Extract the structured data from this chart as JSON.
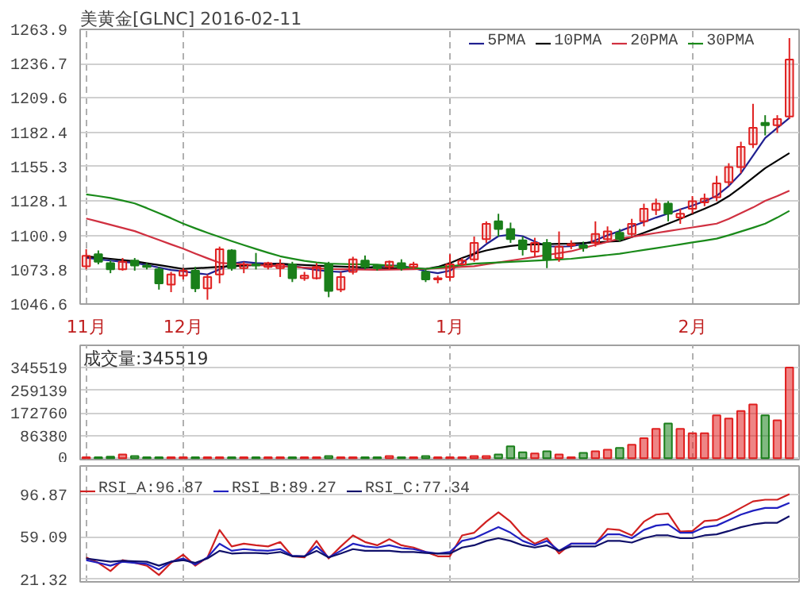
{
  "chart_data": [
    {
      "type": "candlestick",
      "title": "美黄金[GLNC] 2016-02-11",
      "legend": "top right",
      "grid": true,
      "categories": [
        "11月",
        null,
        null,
        null,
        null,
        null,
        null,
        null,
        "12月",
        null,
        null,
        null,
        null,
        null,
        null,
        null,
        null,
        null,
        null,
        null,
        null,
        null,
        null,
        null,
        null,
        null,
        null,
        null,
        null,
        null,
        "1月",
        null,
        null,
        null,
        null,
        null,
        null,
        null,
        null,
        null,
        null,
        null,
        null,
        null,
        null,
        null,
        null,
        null,
        null,
        null,
        "2月",
        null,
        null,
        null,
        null,
        null,
        null,
        null,
        null
      ],
      "ohlc": [
        [
          1076.5,
          1090,
          1074,
          1084.8
        ],
        [
          1086,
          1089,
          1078,
          1080
        ],
        [
          1079,
          1081,
          1071,
          1074
        ],
        [
          1074,
          1083,
          1073,
          1080
        ],
        [
          1081,
          1083,
          1073,
          1077
        ],
        [
          1077,
          1079,
          1074,
          1076
        ],
        [
          1074,
          1076,
          1058,
          1063
        ],
        [
          1062,
          1072,
          1056,
          1070
        ],
        [
          1069,
          1075,
          1066,
          1073
        ],
        [
          1073,
          1076,
          1056,
          1059
        ],
        [
          1059,
          1070,
          1050,
          1068
        ],
        [
          1070,
          1092,
          1063,
          1090
        ],
        [
          1089,
          1090,
          1073,
          1075
        ],
        [
          1075,
          1080,
          1071,
          1078
        ],
        [
          1078,
          1087,
          1074,
          1077
        ],
        [
          1076,
          1080,
          1074,
          1079
        ],
        [
          1075,
          1082,
          1068,
          1078
        ],
        [
          1078,
          1080,
          1064,
          1067
        ],
        [
          1067,
          1072,
          1065,
          1069
        ],
        [
          1067,
          1079,
          1066,
          1076
        ],
        [
          1078,
          1080,
          1052,
          1057
        ],
        [
          1058,
          1072,
          1056,
          1068
        ],
        [
          1072,
          1084,
          1070,
          1082
        ],
        [
          1081,
          1085,
          1074,
          1076
        ],
        [
          1077,
          1078,
          1073,
          1075
        ],
        [
          1076,
          1081,
          1074,
          1080
        ],
        [
          1079,
          1082,
          1073,
          1075
        ],
        [
          1076,
          1080,
          1074,
          1078
        ],
        [
          1072,
          1074,
          1064,
          1066
        ],
        [
          1066,
          1069,
          1063,
          1067
        ],
        [
          1068,
          1086,
          1065,
          1078
        ],
        [
          1078,
          1083,
          1077,
          1081
        ],
        [
          1082,
          1100,
          1080,
          1095
        ],
        [
          1098,
          1112,
          1095,
          1110
        ],
        [
          1112,
          1118,
          1100,
          1106
        ],
        [
          1106,
          1111,
          1095,
          1098
        ],
        [
          1097,
          1100,
          1085,
          1090
        ],
        [
          1088,
          1099,
          1084,
          1095
        ],
        [
          1095,
          1098,
          1075,
          1082
        ],
        [
          1083,
          1104,
          1080,
          1092
        ],
        [
          1093,
          1097,
          1090,
          1094
        ],
        [
          1093,
          1096,
          1088,
          1091
        ],
        [
          1095,
          1112,
          1092,
          1102
        ],
        [
          1098,
          1108,
          1096,
          1104
        ],
        [
          1103,
          1106,
          1096,
          1098
        ],
        [
          1102,
          1114,
          1100,
          1110
        ],
        [
          1112,
          1126,
          1108,
          1122
        ],
        [
          1121,
          1130,
          1117,
          1126
        ],
        [
          1126,
          1128,
          1112,
          1118
        ],
        [
          1115,
          1122,
          1110,
          1118
        ],
        [
          1122,
          1132,
          1118,
          1128
        ],
        [
          1127,
          1134,
          1124,
          1130
        ],
        [
          1131,
          1148,
          1128,
          1142
        ],
        [
          1143,
          1158,
          1140,
          1155
        ],
        [
          1155,
          1175,
          1150,
          1171
        ],
        [
          1173,
          1205,
          1170,
          1186
        ],
        [
          1190,
          1196,
          1180,
          1188
        ],
        [
          1188,
          1196,
          1182,
          1193
        ],
        [
          1195,
          1257,
          1193,
          1240
        ]
      ],
      "colors": [
        "#e02020",
        "#1a7f1a",
        "#1a7f1a",
        "#e02020",
        "#1a7f1a",
        "#1a7f1a",
        "#1a7f1a",
        "#e02020",
        "#e02020",
        "#1a7f1a",
        "#e02020",
        "#e02020",
        "#1a7f1a",
        "#e02020",
        "#1a7f1a",
        "#e02020",
        "#e02020",
        "#1a7f1a",
        "#e02020",
        "#e02020",
        "#1a7f1a",
        "#e02020",
        "#e02020",
        "#1a7f1a",
        "#1a7f1a",
        "#e02020",
        "#1a7f1a",
        "#e02020",
        "#1a7f1a",
        "#e02020",
        "#e02020",
        "#e02020",
        "#e02020",
        "#e02020",
        "#1a7f1a",
        "#1a7f1a",
        "#1a7f1a",
        "#e02020",
        "#1a7f1a",
        "#e02020",
        "#e02020",
        "#1a7f1a",
        "#e02020",
        "#e02020",
        "#1a7f1a",
        "#e02020",
        "#e02020",
        "#e02020",
        "#1a7f1a",
        "#e02020",
        "#e02020",
        "#e02020",
        "#e02020",
        "#e02020",
        "#e02020",
        "#e02020",
        "#1a7f1a",
        "#e02020",
        "#e02020"
      ],
      "series": [
        {
          "name": "5PMA",
          "type": "line",
          "color": "#202090",
          "values": [
            1083.2,
            1082,
            1081,
            1080,
            1079.2,
            1077.5,
            1075.5,
            1073.5,
            1072.5,
            1071,
            1070,
            1074,
            1078.5,
            1080,
            1079,
            1078.5,
            1078.5,
            1077,
            1075,
            1073.5,
            1072.5,
            1072,
            1073.5,
            1075,
            1076.5,
            1077,
            1077,
            1075,
            1072.5,
            1071,
            1073,
            1079,
            1086.4,
            1094,
            1100.3,
            1101.5,
            1100.3,
            1096,
            1092.3,
            1092,
            1092.3,
            1094,
            1097,
            1101,
            1104.3,
            1108,
            1111.5,
            1115,
            1118.2,
            1121.5,
            1124.5,
            1128,
            1132.2,
            1140,
            1150.1,
            1164,
            1177.9,
            1186,
            1193.8
          ]
        },
        {
          "name": "10PMA",
          "type": "line",
          "color": "#000000",
          "values": [
            1084.4,
            1083.4,
            1082.4,
            1081.4,
            1080.4,
            1078.9,
            1077.4,
            1075.9,
            1074.4,
            1074.9,
            1075.4,
            1076,
            1076.5,
            1077,
            1077.5,
            1078,
            1078.5,
            1078,
            1077.5,
            1077,
            1076.5,
            1076.2,
            1075.9,
            1075.6,
            1075.3,
            1075,
            1074.8,
            1074.6,
            1074.4,
            1076,
            1079,
            1083,
            1086.4,
            1089,
            1091,
            1092.5,
            1093.5,
            1093.8,
            1094,
            1094.2,
            1094.4,
            1094.9,
            1095.4,
            1095.9,
            1096.4,
            1099.5,
            1103,
            1106.5,
            1110.2,
            1114,
            1118,
            1122,
            1126.2,
            1132,
            1139,
            1146.5,
            1154.1,
            1160,
            1166
          ]
        },
        {
          "name": "20PMA",
          "type": "line",
          "color": "#d03040",
          "values": [
            1114.3,
            1111.8,
            1109.3,
            1106.8,
            1104.3,
            1100.8,
            1097.3,
            1093.8,
            1090.4,
            1086.5,
            1082.8,
            1079.2,
            1078.5,
            1078,
            1077.5,
            1077,
            1076.5,
            1076,
            1075.4,
            1074.9,
            1074.4,
            1074.2,
            1074,
            1073.8,
            1073.7,
            1073.9,
            1074,
            1074.2,
            1074.4,
            1074.9,
            1075.4,
            1076,
            1076.5,
            1078,
            1079.5,
            1081,
            1082.4,
            1083.9,
            1085.4,
            1086.9,
            1088.4,
            1090.9,
            1093.4,
            1095.8,
            1098.3,
            1099.8,
            1101.3,
            1102.8,
            1104.3,
            1105.8,
            1107.2,
            1108.7,
            1110.2,
            1114,
            1118.5,
            1123,
            1128.2,
            1132,
            1136.2
          ]
        },
        {
          "name": "30PMA",
          "type": "line",
          "color": "#1a8a1a",
          "values": [
            1133.4,
            1132,
            1130.5,
            1128.5,
            1126.2,
            1122.5,
            1118.5,
            1114.5,
            1110.2,
            1106.5,
            1103,
            1099.7,
            1096.4,
            1093.2,
            1090.2,
            1087.2,
            1084.4,
            1082.5,
            1080.8,
            1079.5,
            1078.5,
            1078.3,
            1078.1,
            1078,
            1077.8,
            1077,
            1076,
            1075.2,
            1074.4,
            1075.4,
            1076.5,
            1077.5,
            1078.5,
            1079,
            1079.5,
            1080,
            1080.4,
            1080.9,
            1081.4,
            1081.9,
            1082.4,
            1083.4,
            1084.4,
            1085.4,
            1086.4,
            1087.9,
            1089.4,
            1090.8,
            1092.3,
            1093.8,
            1095.3,
            1096.8,
            1098.3,
            1101,
            1104,
            1107,
            1110.2,
            1115,
            1120.3
          ]
        }
      ],
      "ylim": [
        1046.6,
        1263.9
      ],
      "yticks": [
        1046.6,
        1073.8,
        1100.9,
        1128.1,
        1155.3,
        1182.4,
        1209.6,
        1236.7,
        1263.9
      ]
    },
    {
      "type": "bar",
      "title": "成交量:345519",
      "grid": true,
      "tick_labels": "y",
      "categories": [
        null,
        null,
        null,
        null,
        null,
        null,
        null,
        null,
        null,
        null,
        null,
        null,
        null,
        null,
        null,
        null,
        null,
        null,
        null,
        null,
        null,
        null,
        null,
        null,
        null,
        null,
        null,
        null,
        null,
        null,
        null,
        null,
        null,
        null,
        null,
        null,
        null,
        null,
        null,
        null,
        null,
        null,
        null,
        null,
        null,
        null,
        null,
        null,
        null,
        null,
        null,
        null,
        null,
        null,
        null,
        null,
        null,
        null,
        null
      ],
      "values": [
        4000,
        4000,
        6000,
        14500,
        8300,
        4000,
        4000,
        4000,
        4000,
        4000,
        4000,
        4000,
        4000,
        4000,
        4000,
        4000,
        4000,
        4000,
        4000,
        4000,
        8300,
        4000,
        4000,
        4000,
        4000,
        8300,
        4000,
        4000,
        8300,
        4000,
        4000,
        4000,
        8300,
        8300,
        14500,
        45500,
        22800,
        18600,
        26900,
        14500,
        4100,
        20700,
        26900,
        33100,
        39300,
        51700,
        76600,
        111700,
        132400,
        111700,
        95200,
        95200,
        163500,
        151000,
        180000,
        204800,
        163500,
        144800,
        345519
      ],
      "colors": [
        "#e02020",
        "#1a7f1a",
        "#1a7f1a",
        "#e02020",
        "#1a7f1a",
        "#1a7f1a",
        "#1a7f1a",
        "#e02020",
        "#e02020",
        "#1a7f1a",
        "#e02020",
        "#e02020",
        "#1a7f1a",
        "#e02020",
        "#1a7f1a",
        "#e02020",
        "#e02020",
        "#1a7f1a",
        "#e02020",
        "#e02020",
        "#1a7f1a",
        "#e02020",
        "#e02020",
        "#1a7f1a",
        "#1a7f1a",
        "#e02020",
        "#1a7f1a",
        "#e02020",
        "#1a7f1a",
        "#e02020",
        "#e02020",
        "#e02020",
        "#e02020",
        "#e02020",
        "#1a7f1a",
        "#1a7f1a",
        "#1a7f1a",
        "#e02020",
        "#1a7f1a",
        "#e02020",
        "#e02020",
        "#1a7f1a",
        "#e02020",
        "#e02020",
        "#1a7f1a",
        "#e02020",
        "#e02020",
        "#e02020",
        "#1a7f1a",
        "#e02020",
        "#e02020",
        "#e02020",
        "#e02020",
        "#e02020",
        "#e02020",
        "#e02020",
        "#1a7f1a",
        "#e02020",
        "#e02020"
      ],
      "ylim": [
        -5000,
        430000
      ],
      "yticks": [
        0,
        86380,
        172760,
        259139,
        345519
      ]
    },
    {
      "type": "line",
      "legend": "top left",
      "grid": true,
      "tick_labels": "y",
      "categories": [
        null,
        null,
        null,
        null,
        null,
        null,
        null,
        null,
        null,
        null,
        null,
        null,
        null,
        null,
        null,
        null,
        null,
        null,
        null,
        null,
        null,
        null,
        null,
        null,
        null,
        null,
        null,
        null,
        null,
        null,
        null,
        null,
        null,
        null,
        null,
        null,
        null,
        null,
        null,
        null,
        null,
        null,
        null,
        null,
        null,
        null,
        null,
        null,
        null,
        null,
        null,
        null,
        null,
        null,
        null,
        null,
        null,
        null,
        null
      ],
      "series": [
        {
          "name": "RSI_A:96.87",
          "color": "#d02020",
          "values": [
            40.7,
            35.9,
            28.6,
            38.3,
            35.9,
            33.4,
            25.1,
            35.9,
            43.2,
            33.4,
            40.7,
            65.1,
            50.5,
            52.9,
            51.5,
            50.5,
            54.4,
            41.7,
            40.7,
            55.4,
            39.8,
            50.5,
            60.3,
            54.4,
            51.5,
            56.9,
            51.5,
            49.5,
            45.6,
            41.7,
            41.7,
            60.3,
            62.7,
            72.5,
            80.8,
            72.5,
            60.3,
            52.9,
            57.8,
            44.2,
            52.9,
            52.9,
            52.9,
            66.1,
            65.1,
            60.3,
            72.5,
            78.8,
            79.8,
            63.7,
            64.2,
            73.0,
            73.9,
            78.8,
            84.7,
            90.5,
            92.0,
            92.0,
            96.87
          ]
        },
        {
          "name": "RSI_B:89.27",
          "color": "#2020c0",
          "values": [
            38.3,
            35.9,
            33.4,
            36.9,
            35.9,
            34.9,
            30.0,
            36.9,
            39.8,
            34.4,
            40.7,
            52.9,
            46.6,
            48.1,
            47.1,
            46.6,
            48.1,
            42.2,
            41.7,
            50.5,
            40.7,
            46.6,
            52.9,
            50.5,
            49.5,
            51.5,
            49.0,
            48.1,
            45.6,
            44.2,
            45.6,
            55.4,
            57.8,
            62.7,
            67.6,
            62.7,
            55.4,
            51.5,
            55.4,
            46.6,
            52.9,
            52.9,
            52.9,
            61.2,
            61.2,
            57.8,
            65.1,
            69.0,
            70.0,
            62.7,
            62.7,
            67.6,
            69.0,
            73.9,
            78.8,
            82.2,
            84.7,
            84.7,
            89.27
          ]
        },
        {
          "name": "RSI_C:77.34",
          "color": "#10106a",
          "values": [
            39.8,
            38.3,
            36.9,
            37.8,
            37.3,
            36.9,
            33.4,
            36.9,
            38.3,
            35.9,
            39.8,
            46.6,
            44.2,
            44.7,
            44.7,
            44.2,
            45.6,
            41.7,
            41.7,
            46.6,
            40.7,
            44.2,
            48.1,
            46.6,
            46.6,
            46.6,
            45.6,
            45.6,
            44.7,
            44.2,
            44.2,
            49.5,
            51.5,
            55.4,
            57.8,
            55.4,
            51.5,
            49.5,
            51.5,
            46.6,
            50.5,
            50.5,
            50.5,
            55.4,
            55.4,
            53.9,
            57.8,
            60.3,
            60.3,
            57.8,
            57.8,
            60.3,
            61.2,
            64.2,
            67.6,
            70.0,
            71.5,
            71.5,
            77.34
          ]
        }
      ],
      "ylim": [
        19,
        122
      ],
      "yticks": [
        21.32,
        59.09,
        96.87
      ]
    }
  ]
}
